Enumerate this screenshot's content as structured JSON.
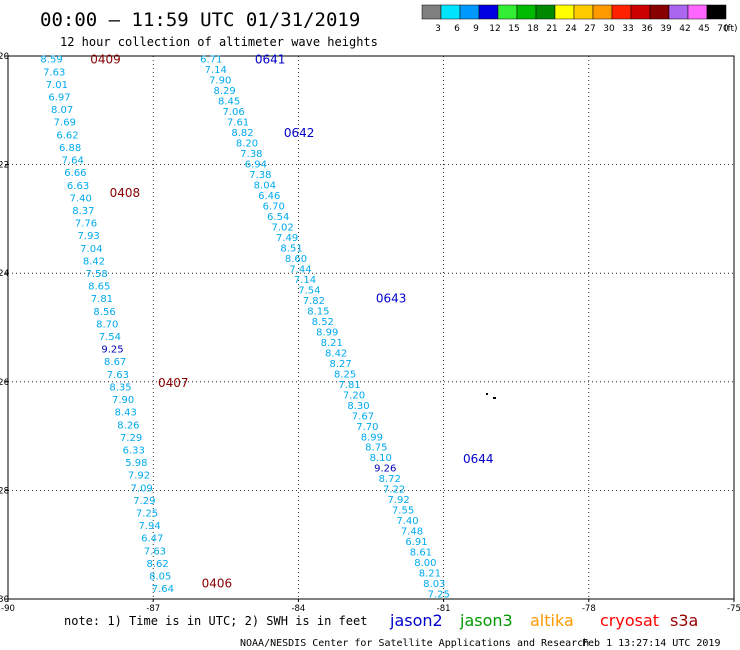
{
  "header": {
    "title": "00:00 – 11:59 UTC 01/31/2019",
    "subtitle": "12 hour collection of altimeter wave heights"
  },
  "legend": {
    "unit": "(ft)",
    "bins": [
      {
        "label": "3",
        "color": "#808080"
      },
      {
        "label": "6",
        "color": "#00e5ff"
      },
      {
        "label": "9",
        "color": "#0099ff"
      },
      {
        "label": "12",
        "color": "#0000e0"
      },
      {
        "label": "15",
        "color": "#33ee33"
      },
      {
        "label": "18",
        "color": "#00bb00"
      },
      {
        "label": "21",
        "color": "#008800"
      },
      {
        "label": "24",
        "color": "#ffff00"
      },
      {
        "label": "27",
        "color": "#ffcc00"
      },
      {
        "label": "30",
        "color": "#ff9900"
      },
      {
        "label": "33",
        "color": "#ff2200"
      },
      {
        "label": "36",
        "color": "#cc0000"
      },
      {
        "label": "39",
        "color": "#880000"
      },
      {
        "label": "42",
        "color": "#aa66ee"
      },
      {
        "label": "45",
        "color": "#ff66ff"
      },
      {
        "label": "70",
        "color": "#000000"
      }
    ]
  },
  "footer": {
    "note": "note:  1) Time is in UTC;  2) SWH is in feet",
    "credit": "NOAA/NESDIS Center for Satellite Applications and Research",
    "timestamp": "Feb  1 13:27:14 UTC 2019",
    "satellites": [
      {
        "name": "jason2",
        "color": "#0000cc"
      },
      {
        "name": "jason3",
        "color": "#009900"
      },
      {
        "name": "altika",
        "color": "#ff9900"
      },
      {
        "name": "cryosat",
        "color": "#ff0000"
      },
      {
        "name": "s3a",
        "color": "#990000"
      }
    ]
  },
  "colors": {
    "value_light": "#00aaee",
    "value_dark": "#0000bb",
    "label_s3a": "#880000",
    "label_jason2": "#0000cc"
  },
  "chart_data": {
    "type": "scatter",
    "xlim": [
      -90,
      -75
    ],
    "ylim": [
      -30,
      -20
    ],
    "x_ticks": [
      -90,
      -87,
      -84,
      -81,
      -78,
      -75
    ],
    "y_ticks": [
      -20,
      -22,
      -24,
      -26,
      -28,
      -30
    ],
    "grid": true,
    "tracks": [
      {
        "satellite": "s3a",
        "color": "#880000",
        "start": [
          -89.1,
          -20.05
        ],
        "end": [
          -86.8,
          -29.8
        ],
        "values": [
          "8.59",
          "7.63",
          "7.01",
          "6.97",
          "8.07",
          "7.69",
          "6.62",
          "6.88",
          "7.64",
          "6.66",
          "6.63",
          "7.40",
          "8.37",
          "7.76",
          "7.93",
          "7.04",
          "8.42",
          "7.58",
          "8.65",
          "7.81",
          "8.56",
          "8.70",
          "7.54",
          "9.25",
          "8.67",
          "7.63",
          "8.35",
          "7.90",
          "8.43",
          "8.26",
          "7.29",
          "6.33",
          "5.98",
          "7.92",
          "7.09",
          "7.29",
          "7.25",
          "7.94",
          "6.47",
          "7.63",
          "8.62",
          "8.05",
          "7.64"
        ],
        "dark_value_indexes": [
          23
        ],
        "time_labels": [
          {
            "text": "0409",
            "lon": -88.3,
            "lat": -20.05
          },
          {
            "text": "0408",
            "lon": -87.9,
            "lat": -22.5
          },
          {
            "text": "0407",
            "lon": -86.9,
            "lat": -26.0
          },
          {
            "text": "0406",
            "lon": -86.0,
            "lat": -29.7
          }
        ]
      },
      {
        "satellite": "jason2",
        "color": "#0000cc",
        "start": [
          -85.8,
          -20.05
        ],
        "end": [
          -81.1,
          -29.9
        ],
        "values": [
          "6.71",
          "7.14",
          "7.90",
          "8.29",
          "8.45",
          "7.06",
          "7.61",
          "8.82",
          "8.20",
          "7.38",
          "6.94",
          "7.38",
          "8.04",
          "6.46",
          "6.70",
          "6.54",
          "7.02",
          "7.49",
          "8.51",
          "8.60",
          "7.44",
          "7.14",
          "7.54",
          "7.82",
          "8.15",
          "8.52",
          "8.99",
          "8.21",
          "8.42",
          "8.27",
          "8.25",
          "7.81",
          "7.20",
          "8.30",
          "7.67",
          "7.70",
          "8.99",
          "8.75",
          "8.10",
          "9.26",
          "8.72",
          "7.22",
          "7.92",
          "7.55",
          "7.40",
          "7.48",
          "6.91",
          "8.61",
          "8.00",
          "8.21",
          "8.03",
          "7.25"
        ],
        "dark_value_indexes": [
          39
        ],
        "time_labels": [
          {
            "text": "0641",
            "lon": -84.9,
            "lat": -20.05
          },
          {
            "text": "0642",
            "lon": -84.3,
            "lat": -21.4
          },
          {
            "text": "0643",
            "lon": -82.4,
            "lat": -24.45
          },
          {
            "text": "0644",
            "lon": -80.6,
            "lat": -27.4
          }
        ]
      }
    ]
  }
}
